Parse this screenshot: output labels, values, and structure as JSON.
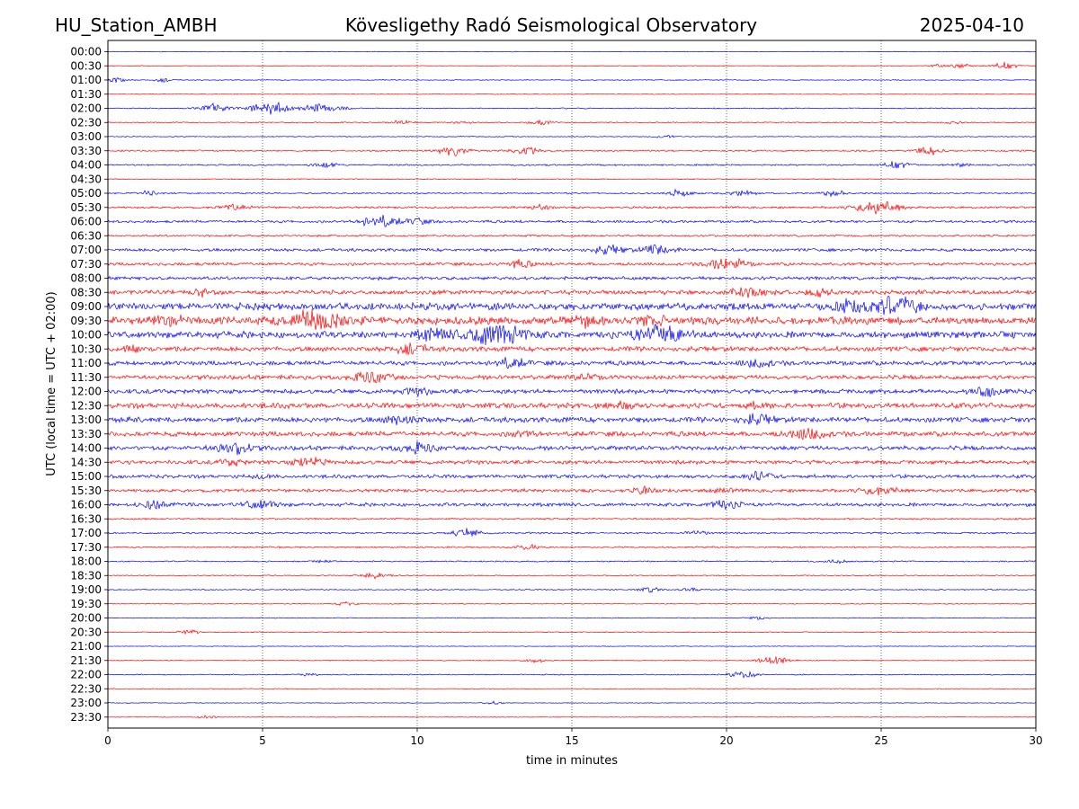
{
  "header": {
    "station": "HU_Station_AMBH",
    "observatory": "Kövesligethy Radó Seismological Observatory",
    "date": "2025-04-10"
  },
  "chart_data": {
    "type": "line",
    "title": "Kövesligethy Radó Seismological Observatory",
    "xlabel": "time in minutes",
    "ylabel": "UTC (local time = UTC + 02:00)",
    "xlim": [
      0,
      30
    ],
    "x_ticks": [
      0,
      5,
      10,
      15,
      20,
      25,
      30
    ],
    "x_tick_labels": [
      "0",
      "5",
      "10",
      "15",
      "20",
      "25",
      "30"
    ],
    "grid": "vertical dotted at x ticks",
    "colors": {
      "even": "#0000ff",
      "odd": "#ff0000"
    },
    "rows": [
      {
        "label": "00:00",
        "amp": 0.3,
        "bursts": []
      },
      {
        "label": "00:30",
        "amp": 0.3,
        "bursts": [
          [
            27.6,
            2.5
          ],
          [
            29.0,
            3.0
          ],
          [
            26.8,
            1.5
          ]
        ]
      },
      {
        "label": "01:00",
        "amp": 0.4,
        "bursts": [
          [
            0.2,
            2.5
          ],
          [
            1.8,
            1.5
          ]
        ]
      },
      {
        "label": "01:30",
        "amp": 0.3,
        "bursts": []
      },
      {
        "label": "02:00",
        "amp": 0.5,
        "bursts": [
          [
            3.5,
            4.0
          ],
          [
            5.3,
            6.0
          ],
          [
            6.8,
            3.5
          ],
          [
            7.5,
            2.0
          ]
        ]
      },
      {
        "label": "02:30",
        "amp": 0.5,
        "bursts": [
          [
            9.5,
            2.0
          ],
          [
            11.5,
            1.5
          ],
          [
            14.0,
            2.0
          ],
          [
            27.3,
            1.5
          ]
        ]
      },
      {
        "label": "03:00",
        "amp": 0.4,
        "bursts": [
          [
            18.0,
            1.5
          ]
        ]
      },
      {
        "label": "03:30",
        "amp": 0.7,
        "bursts": [
          [
            11.2,
            4.0
          ],
          [
            13.5,
            3.0
          ],
          [
            26.5,
            3.5
          ]
        ]
      },
      {
        "label": "04:00",
        "amp": 0.7,
        "bursts": [
          [
            7.0,
            2.5
          ],
          [
            25.5,
            3.0
          ],
          [
            27.5,
            2.0
          ]
        ]
      },
      {
        "label": "04:30",
        "amp": 0.4,
        "bursts": []
      },
      {
        "label": "05:00",
        "amp": 0.7,
        "bursts": [
          [
            1.3,
            2.0
          ],
          [
            18.5,
            3.0
          ],
          [
            20.5,
            2.5
          ],
          [
            23.5,
            2.5
          ]
        ]
      },
      {
        "label": "05:30",
        "amp": 1.0,
        "bursts": [
          [
            4.1,
            3.0
          ],
          [
            24.9,
            6.0
          ],
          [
            14.0,
            2.0
          ]
        ]
      },
      {
        "label": "06:00",
        "amp": 1.2,
        "bursts": [
          [
            8.8,
            5.0
          ],
          [
            10.0,
            2.5
          ]
        ]
      },
      {
        "label": "06:30",
        "amp": 0.9,
        "bursts": []
      },
      {
        "label": "07:00",
        "amp": 1.4,
        "bursts": [
          [
            16.2,
            4.0
          ],
          [
            17.8,
            4.0
          ]
        ]
      },
      {
        "label": "07:30",
        "amp": 1.4,
        "bursts": [
          [
            13.3,
            3.0
          ],
          [
            20.0,
            5.0
          ]
        ]
      },
      {
        "label": "08:00",
        "amp": 1.5,
        "bursts": []
      },
      {
        "label": "08:30",
        "amp": 2.0,
        "bursts": [
          [
            20.7,
            5.0
          ],
          [
            23.0,
            3.0
          ],
          [
            3.0,
            2.5
          ]
        ]
      },
      {
        "label": "09:00",
        "amp": 3.2,
        "bursts": [
          [
            25.5,
            7.0
          ],
          [
            24.0,
            5.0
          ]
        ]
      },
      {
        "label": "09:30",
        "amp": 3.5,
        "bursts": [
          [
            6.8,
            9.0
          ],
          [
            2.0,
            4.0
          ],
          [
            15.5,
            4.0
          ],
          [
            17.5,
            4.0
          ]
        ]
      },
      {
        "label": "10:00",
        "amp": 3.0,
        "bursts": [
          [
            12.5,
            9.0
          ],
          [
            17.9,
            8.0
          ],
          [
            10.5,
            4.0
          ]
        ]
      },
      {
        "label": "10:30",
        "amp": 2.2,
        "bursts": [
          [
            9.8,
            4.0
          ],
          [
            0.8,
            3.0
          ]
        ]
      },
      {
        "label": "11:00",
        "amp": 2.0,
        "bursts": [
          [
            13.0,
            4.0
          ],
          [
            21.0,
            3.5
          ]
        ]
      },
      {
        "label": "11:30",
        "amp": 2.0,
        "bursts": [
          [
            8.5,
            5.0
          ],
          [
            15.5,
            2.5
          ]
        ]
      },
      {
        "label": "12:00",
        "amp": 2.0,
        "bursts": [
          [
            28.5,
            4.0
          ],
          [
            10.0,
            3.0
          ]
        ]
      },
      {
        "label": "12:30",
        "amp": 2.4,
        "bursts": [
          [
            16.5,
            3.5
          ],
          [
            21.0,
            2.5
          ]
        ]
      },
      {
        "label": "13:00",
        "amp": 2.4,
        "bursts": [
          [
            9.5,
            4.0
          ],
          [
            21.0,
            4.0
          ]
        ]
      },
      {
        "label": "13:30",
        "amp": 2.2,
        "bursts": [
          [
            22.6,
            5.0
          ],
          [
            13.5,
            3.0
          ]
        ]
      },
      {
        "label": "14:00",
        "amp": 2.0,
        "bursts": [
          [
            4.0,
            5.0
          ],
          [
            10.0,
            4.5
          ]
        ]
      },
      {
        "label": "14:30",
        "amp": 1.8,
        "bursts": [
          [
            6.5,
            4.0
          ],
          [
            4.0,
            2.5
          ]
        ]
      },
      {
        "label": "15:00",
        "amp": 1.6,
        "bursts": [
          [
            21.0,
            3.5
          ],
          [
            5.0,
            2.0
          ]
        ]
      },
      {
        "label": "15:30",
        "amp": 1.5,
        "bursts": [
          [
            25.0,
            4.0
          ],
          [
            17.2,
            3.0
          ],
          [
            19.8,
            2.5
          ]
        ]
      },
      {
        "label": "16:00",
        "amp": 1.6,
        "bursts": [
          [
            1.5,
            3.5
          ],
          [
            4.9,
            4.0
          ],
          [
            20.0,
            4.0
          ]
        ]
      },
      {
        "label": "16:30",
        "amp": 0.8,
        "bursts": []
      },
      {
        "label": "17:00",
        "amp": 0.8,
        "bursts": [
          [
            11.6,
            3.5
          ],
          [
            19.0,
            2.5
          ]
        ]
      },
      {
        "label": "17:30",
        "amp": 0.7,
        "bursts": [
          [
            13.5,
            2.5
          ]
        ]
      },
      {
        "label": "18:00",
        "amp": 0.6,
        "bursts": [
          [
            7.0,
            1.5
          ],
          [
            23.5,
            2.0
          ]
        ]
      },
      {
        "label": "18:30",
        "amp": 0.5,
        "bursts": [
          [
            8.7,
            3.0
          ]
        ]
      },
      {
        "label": "19:00",
        "amp": 0.5,
        "bursts": [
          [
            17.5,
            2.0
          ],
          [
            18.8,
            1.5
          ]
        ]
      },
      {
        "label": "19:30",
        "amp": 0.4,
        "bursts": [
          [
            7.7,
            1.5
          ]
        ]
      },
      {
        "label": "20:00",
        "amp": 0.4,
        "bursts": [
          [
            21.0,
            1.5
          ]
        ]
      },
      {
        "label": "20:30",
        "amp": 0.4,
        "bursts": [
          [
            2.6,
            2.0
          ]
        ]
      },
      {
        "label": "21:00",
        "amp": 0.3,
        "bursts": []
      },
      {
        "label": "21:30",
        "amp": 0.4,
        "bursts": [
          [
            21.5,
            4.0
          ],
          [
            13.8,
            2.0
          ]
        ]
      },
      {
        "label": "22:00",
        "amp": 0.5,
        "bursts": [
          [
            20.5,
            3.0
          ],
          [
            6.5,
            1.5
          ]
        ]
      },
      {
        "label": "22:30",
        "amp": 0.3,
        "bursts": []
      },
      {
        "label": "23:00",
        "amp": 0.3,
        "bursts": [
          [
            12.5,
            1.5
          ]
        ]
      },
      {
        "label": "23:30",
        "amp": 0.3,
        "bursts": [
          [
            3.2,
            1.5
          ]
        ]
      }
    ]
  }
}
